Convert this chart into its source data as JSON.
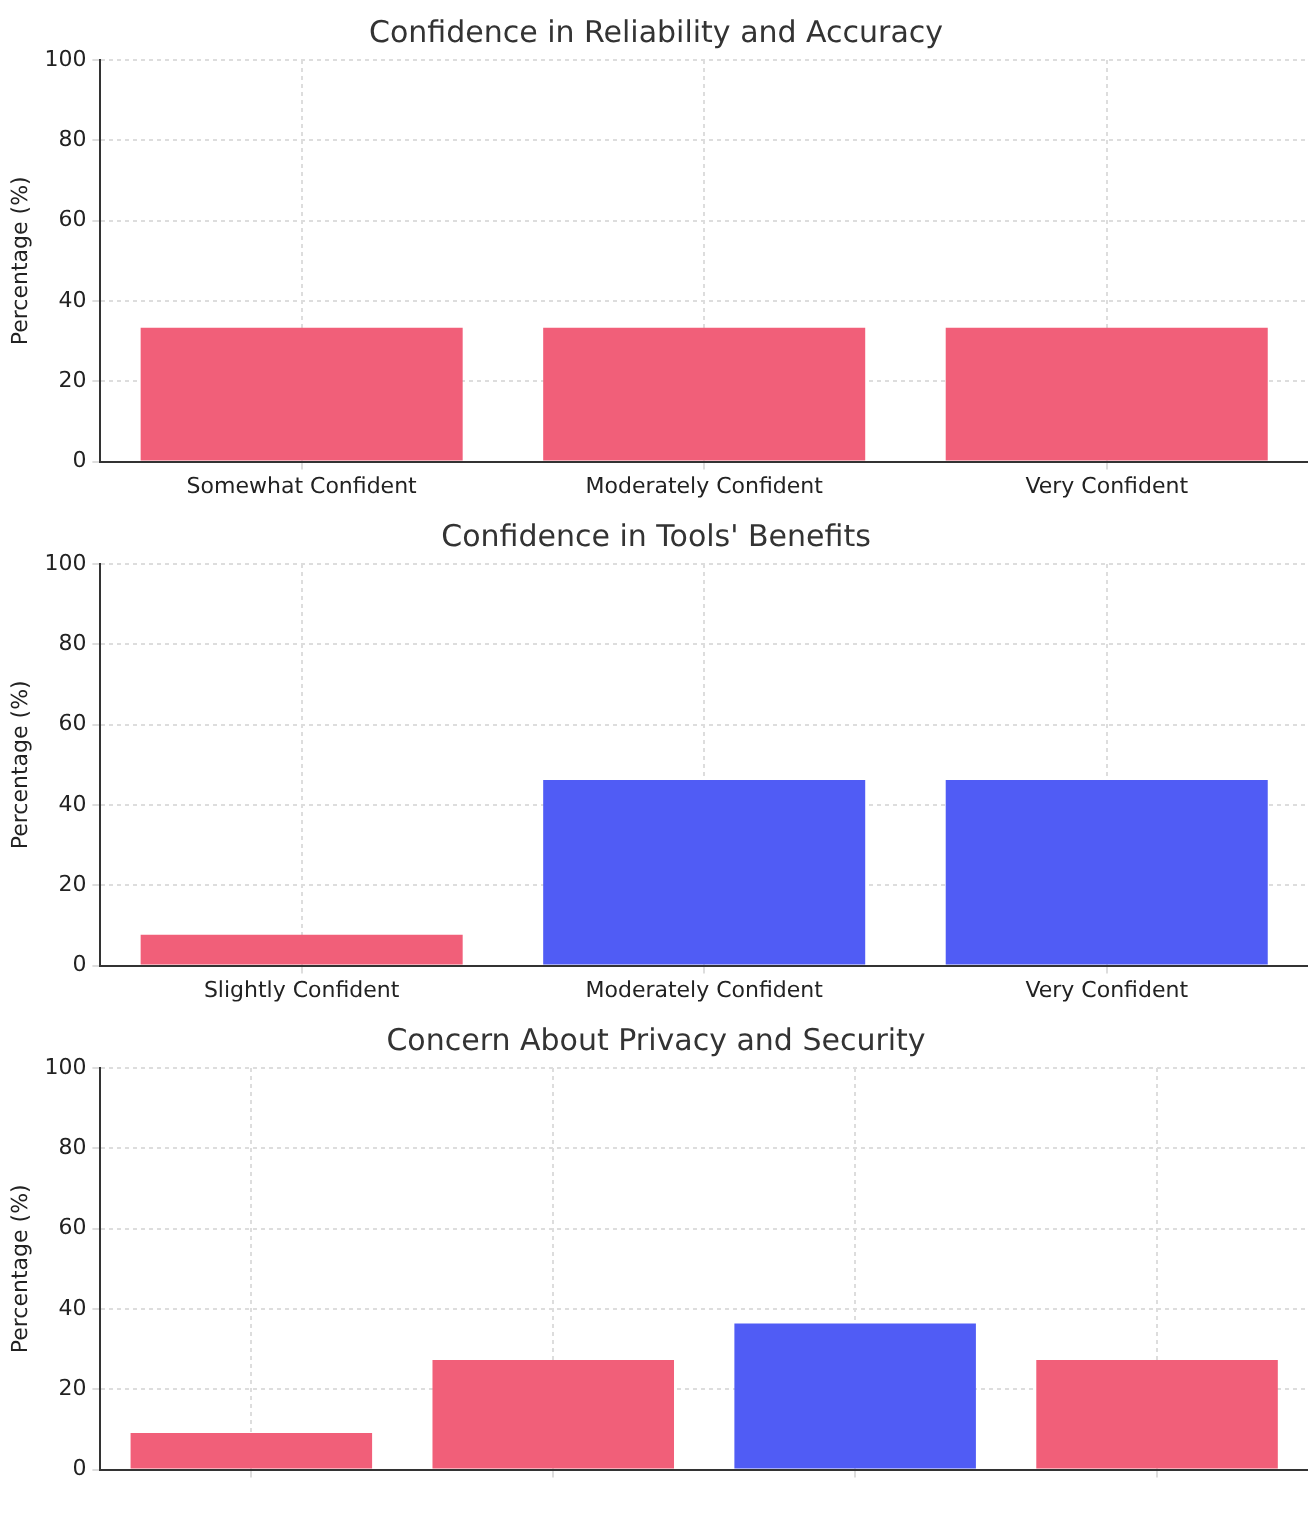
{
  "chart_data": [
    {
      "type": "bar",
      "title": "Confidence in Reliability and Accuracy",
      "ylabel": "Percentage (%)",
      "categories": [
        "Somewhat Confident",
        "Moderately Confident",
        "Very Confident"
      ],
      "values": [
        33.3,
        33.3,
        33.3
      ],
      "colors": [
        "#f15f79",
        "#f15f79",
        "#f15f79"
      ],
      "ylim": [
        0,
        100
      ],
      "yticks": [
        0,
        20,
        40,
        60,
        80,
        100
      ],
      "grid": true
    },
    {
      "type": "bar",
      "title": "Confidence in Tools' Benefits",
      "ylabel": "Percentage (%)",
      "categories": [
        "Slightly Confident",
        "Moderately Confident",
        "Very Confident"
      ],
      "values": [
        7.7,
        46.2,
        46.2
      ],
      "colors": [
        "#f15f79",
        "#505cf5",
        "#505cf5"
      ],
      "ylim": [
        0,
        100
      ],
      "yticks": [
        0,
        20,
        40,
        60,
        80,
        100
      ],
      "grid": true
    },
    {
      "type": "bar",
      "title": "Concern About Privacy and Security",
      "ylabel": "Percentage (%)",
      "categories": [
        null,
        null,
        null,
        null
      ],
      "values": [
        9.1,
        27.3,
        36.4,
        27.3
      ],
      "colors": [
        "#f15f79",
        "#f15f79",
        "#505cf5",
        "#f15f79"
      ],
      "ylim": [
        0,
        100
      ],
      "yticks": [
        0,
        20,
        40,
        60,
        80,
        100
      ],
      "grid": true
    }
  ]
}
